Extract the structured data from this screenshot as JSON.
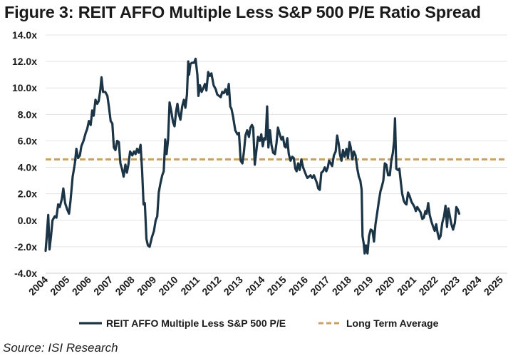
{
  "title": "Figure 3: REIT AFFO Multiple Less S&P 500 P/E Ratio Spread",
  "source": "Source: ISI Research",
  "colors": {
    "series": "#1b3547",
    "average": "#c9a060",
    "grid": "#e3e3e3"
  },
  "chart_data": {
    "type": "line",
    "xlim": [
      2004,
      2025.3
    ],
    "ylim": [
      -4,
      14
    ],
    "y_ticks": [
      -4,
      -2,
      0,
      2,
      4,
      6,
      8,
      10,
      12,
      14
    ],
    "y_tick_labels": [
      "-4.0x",
      "-2.0x",
      "0.0x",
      "2.0x",
      "4.0x",
      "6.0x",
      "8.0x",
      "10.0x",
      "12.0x",
      "14.0x"
    ],
    "x_tick_labels": [
      "2004",
      "2005",
      "2006",
      "2007",
      "2008",
      "2009",
      "2010",
      "2011",
      "2012",
      "2013",
      "2014",
      "2015",
      "2016",
      "2017",
      "2018",
      "2019",
      "2020",
      "2021",
      "2022",
      "2023",
      "2024",
      "2025"
    ],
    "legend_position": "bottom",
    "series": [
      {
        "name": "REIT AFFO Multiple Less S&P 500 P/E",
        "style": "solid",
        "points": [
          [
            2004.0,
            -2.3
          ],
          [
            2004.05,
            -1.3
          ],
          [
            2004.12,
            0.4
          ],
          [
            2004.18,
            -2.2
          ],
          [
            2004.25,
            -1.2
          ],
          [
            2004.32,
            0.0
          ],
          [
            2004.42,
            0.3
          ],
          [
            2004.5,
            0.2
          ],
          [
            2004.58,
            1.2
          ],
          [
            2004.65,
            1.0
          ],
          [
            2004.75,
            1.6
          ],
          [
            2004.82,
            2.4
          ],
          [
            2004.9,
            1.3
          ],
          [
            2005.0,
            0.8
          ],
          [
            2005.08,
            0.5
          ],
          [
            2005.15,
            1.5
          ],
          [
            2005.25,
            3.3
          ],
          [
            2005.35,
            4.3
          ],
          [
            2005.42,
            5.4
          ],
          [
            2005.5,
            4.7
          ],
          [
            2005.58,
            4.9
          ],
          [
            2005.65,
            5.6
          ],
          [
            2005.75,
            6.0
          ],
          [
            2005.85,
            6.6
          ],
          [
            2005.92,
            6.9
          ],
          [
            2006.0,
            7.5
          ],
          [
            2006.08,
            7.2
          ],
          [
            2006.15,
            8.3
          ],
          [
            2006.22,
            7.9
          ],
          [
            2006.3,
            9.1
          ],
          [
            2006.38,
            8.8
          ],
          [
            2006.45,
            9.0
          ],
          [
            2006.52,
            9.8
          ],
          [
            2006.58,
            10.8
          ],
          [
            2006.65,
            9.7
          ],
          [
            2006.75,
            9.7
          ],
          [
            2006.85,
            9.4
          ],
          [
            2006.92,
            8.6
          ],
          [
            2007.0,
            7.5
          ],
          [
            2007.08,
            7.3
          ],
          [
            2007.15,
            5.5
          ],
          [
            2007.22,
            5.3
          ],
          [
            2007.3,
            6.0
          ],
          [
            2007.38,
            5.9
          ],
          [
            2007.45,
            4.3
          ],
          [
            2007.52,
            3.9
          ],
          [
            2007.6,
            3.3
          ],
          [
            2007.68,
            4.2
          ],
          [
            2007.75,
            3.6
          ],
          [
            2007.82,
            4.2
          ],
          [
            2007.9,
            5.2
          ],
          [
            2008.0,
            4.9
          ],
          [
            2008.08,
            5.2
          ],
          [
            2008.15,
            5.0
          ],
          [
            2008.22,
            5.4
          ],
          [
            2008.3,
            5.1
          ],
          [
            2008.38,
            5.7
          ],
          [
            2008.45,
            3.8
          ],
          [
            2008.52,
            1.2
          ],
          [
            2008.58,
            1.3
          ],
          [
            2008.65,
            -1.4
          ],
          [
            2008.72,
            -1.9
          ],
          [
            2008.8,
            -2.0
          ],
          [
            2008.9,
            -1.3
          ],
          [
            2009.0,
            -0.8
          ],
          [
            2009.08,
            0.0
          ],
          [
            2009.15,
            0.3
          ],
          [
            2009.22,
            2.1
          ],
          [
            2009.3,
            2.8
          ],
          [
            2009.38,
            3.4
          ],
          [
            2009.45,
            3.7
          ],
          [
            2009.52,
            6.1
          ],
          [
            2009.58,
            5.0
          ],
          [
            2009.65,
            6.1
          ],
          [
            2009.72,
            8.9
          ],
          [
            2009.8,
            8.2
          ],
          [
            2009.88,
            7.4
          ],
          [
            2009.95,
            7.1
          ],
          [
            2010.02,
            8.2
          ],
          [
            2010.08,
            8.8
          ],
          [
            2010.15,
            8.0
          ],
          [
            2010.22,
            7.6
          ],
          [
            2010.3,
            8.6
          ],
          [
            2010.38,
            9.1
          ],
          [
            2010.45,
            8.5
          ],
          [
            2010.52,
            9.5
          ],
          [
            2010.58,
            12.0
          ],
          [
            2010.62,
            11.0
          ],
          [
            2010.68,
            11.8
          ],
          [
            2010.75,
            11.9
          ],
          [
            2010.85,
            11.9
          ],
          [
            2010.92,
            12.2
          ],
          [
            2011.0,
            11.0
          ],
          [
            2011.05,
            9.4
          ],
          [
            2011.12,
            10.2
          ],
          [
            2011.2,
            9.7
          ],
          [
            2011.28,
            10.0
          ],
          [
            2011.35,
            10.3
          ],
          [
            2011.42,
            9.8
          ],
          [
            2011.5,
            11.2
          ],
          [
            2011.58,
            10.9
          ],
          [
            2011.65,
            11.1
          ],
          [
            2011.75,
            10.2
          ],
          [
            2011.85,
            9.9
          ],
          [
            2011.92,
            9.5
          ],
          [
            2012.0,
            9.4
          ],
          [
            2012.08,
            9.3
          ],
          [
            2012.15,
            9.7
          ],
          [
            2012.22,
            9.6
          ],
          [
            2012.3,
            9.9
          ],
          [
            2012.38,
            9.5
          ],
          [
            2012.45,
            10.3
          ],
          [
            2012.52,
            8.6
          ],
          [
            2012.58,
            8.4
          ],
          [
            2012.65,
            7.8
          ],
          [
            2012.75,
            6.8
          ],
          [
            2012.85,
            6.5
          ],
          [
            2012.92,
            6.6
          ],
          [
            2013.0,
            4.5
          ],
          [
            2013.08,
            4.3
          ],
          [
            2013.15,
            5.2
          ],
          [
            2013.22,
            6.4
          ],
          [
            2013.3,
            6.8
          ],
          [
            2013.38,
            6.3
          ],
          [
            2013.45,
            7.0
          ],
          [
            2013.52,
            7.2
          ],
          [
            2013.58,
            7.0
          ],
          [
            2013.65,
            4.2
          ],
          [
            2013.72,
            5.2
          ],
          [
            2013.8,
            6.3
          ],
          [
            2013.88,
            6.0
          ],
          [
            2013.95,
            6.5
          ],
          [
            2014.02,
            5.6
          ],
          [
            2014.08,
            6.2
          ],
          [
            2014.15,
            6.1
          ],
          [
            2014.22,
            8.6
          ],
          [
            2014.28,
            5.5
          ],
          [
            2014.35,
            6.8
          ],
          [
            2014.42,
            5.7
          ],
          [
            2014.5,
            5.1
          ],
          [
            2014.58,
            5.0
          ],
          [
            2014.65,
            5.8
          ],
          [
            2014.72,
            7.0
          ],
          [
            2014.8,
            6.5
          ],
          [
            2014.88,
            6.1
          ],
          [
            2014.95,
            6.3
          ],
          [
            2015.02,
            5.6
          ],
          [
            2015.08,
            5.5
          ],
          [
            2015.15,
            6.2
          ],
          [
            2015.22,
            5.0
          ],
          [
            2015.3,
            4.5
          ],
          [
            2015.38,
            4.8
          ],
          [
            2015.45,
            4.7
          ],
          [
            2015.52,
            3.9
          ],
          [
            2015.58,
            3.7
          ],
          [
            2015.65,
            4.3
          ],
          [
            2015.72,
            3.8
          ],
          [
            2015.8,
            4.6
          ],
          [
            2015.88,
            4.0
          ],
          [
            2015.95,
            3.7
          ],
          [
            2016.02,
            3.4
          ],
          [
            2016.08,
            3.2
          ],
          [
            2016.15,
            3.3
          ],
          [
            2016.22,
            3.4
          ],
          [
            2016.3,
            3.2
          ],
          [
            2016.38,
            3.4
          ],
          [
            2016.45,
            3.1
          ],
          [
            2016.52,
            2.8
          ],
          [
            2016.58,
            2.4
          ],
          [
            2016.65,
            2.3
          ],
          [
            2016.72,
            3.6
          ],
          [
            2016.8,
            3.7
          ],
          [
            2016.88,
            4.0
          ],
          [
            2016.95,
            3.7
          ],
          [
            2017.02,
            4.0
          ],
          [
            2017.08,
            4.5
          ],
          [
            2017.15,
            4.3
          ],
          [
            2017.22,
            4.1
          ],
          [
            2017.3,
            4.9
          ],
          [
            2017.38,
            5.2
          ],
          [
            2017.45,
            6.4
          ],
          [
            2017.52,
            5.8
          ],
          [
            2017.58,
            5.0
          ],
          [
            2017.65,
            4.5
          ],
          [
            2017.72,
            5.3
          ],
          [
            2017.8,
            4.8
          ],
          [
            2017.88,
            5.4
          ],
          [
            2017.95,
            4.7
          ],
          [
            2018.02,
            5.9
          ],
          [
            2018.08,
            5.5
          ],
          [
            2018.15,
            4.6
          ],
          [
            2018.22,
            5.2
          ],
          [
            2018.3,
            4.9
          ],
          [
            2018.38,
            3.9
          ],
          [
            2018.45,
            3.3
          ],
          [
            2018.52,
            3.0
          ],
          [
            2018.58,
            2.3
          ],
          [
            2018.62,
            -1.2
          ],
          [
            2018.68,
            -1.8
          ],
          [
            2018.72,
            -2.5
          ],
          [
            2018.78,
            -1.9
          ],
          [
            2018.85,
            -2.5
          ],
          [
            2018.92,
            -1.2
          ],
          [
            2019.0,
            -0.7
          ],
          [
            2019.08,
            -0.8
          ],
          [
            2019.15,
            -1.6
          ],
          [
            2019.22,
            -0.3
          ],
          [
            2019.3,
            0.6
          ],
          [
            2019.38,
            1.5
          ],
          [
            2019.45,
            2.2
          ],
          [
            2019.52,
            2.6
          ],
          [
            2019.58,
            3.0
          ],
          [
            2019.65,
            4.3
          ],
          [
            2019.72,
            4.2
          ],
          [
            2019.8,
            3.4
          ],
          [
            2019.88,
            3.4
          ],
          [
            2019.95,
            4.5
          ],
          [
            2020.02,
            5.1
          ],
          [
            2020.08,
            6.0
          ],
          [
            2020.12,
            7.7
          ],
          [
            2020.18,
            3.9
          ],
          [
            2020.25,
            3.8
          ],
          [
            2020.32,
            3.9
          ],
          [
            2020.38,
            3.0
          ],
          [
            2020.45,
            2.0
          ],
          [
            2020.52,
            1.5
          ],
          [
            2020.58,
            1.3
          ],
          [
            2020.65,
            1.2
          ],
          [
            2020.72,
            2.1
          ],
          [
            2020.8,
            1.8
          ],
          [
            2020.88,
            1.4
          ],
          [
            2020.95,
            1.2
          ],
          [
            2021.02,
            1.0
          ],
          [
            2021.08,
            0.7
          ],
          [
            2021.15,
            1.0
          ],
          [
            2021.22,
            0.8
          ],
          [
            2021.3,
            0.6
          ],
          [
            2021.38,
            0.1
          ],
          [
            2021.45,
            0.2
          ],
          [
            2021.52,
            0.7
          ],
          [
            2021.58,
            0.5
          ],
          [
            2021.65,
            1.3
          ],
          [
            2021.72,
            0.4
          ],
          [
            2021.8,
            -0.1
          ],
          [
            2021.88,
            -0.5
          ],
          [
            2021.95,
            -0.8
          ],
          [
            2022.02,
            -0.3
          ],
          [
            2022.08,
            -0.9
          ],
          [
            2022.15,
            -1.4
          ],
          [
            2022.22,
            -1.2
          ],
          [
            2022.3,
            -0.2
          ],
          [
            2022.38,
            0.3
          ],
          [
            2022.45,
            1.1
          ],
          [
            2022.52,
            -0.5
          ],
          [
            2022.58,
            0.9
          ],
          [
            2022.65,
            0.3
          ],
          [
            2022.72,
            -0.3
          ],
          [
            2022.8,
            -0.7
          ],
          [
            2022.88,
            -0.2
          ],
          [
            2022.95,
            1.0
          ],
          [
            2023.02,
            0.8
          ],
          [
            2023.08,
            0.5
          ]
        ]
      },
      {
        "name": "Long Term Average",
        "style": "dashed",
        "value": 4.6
      }
    ]
  }
}
